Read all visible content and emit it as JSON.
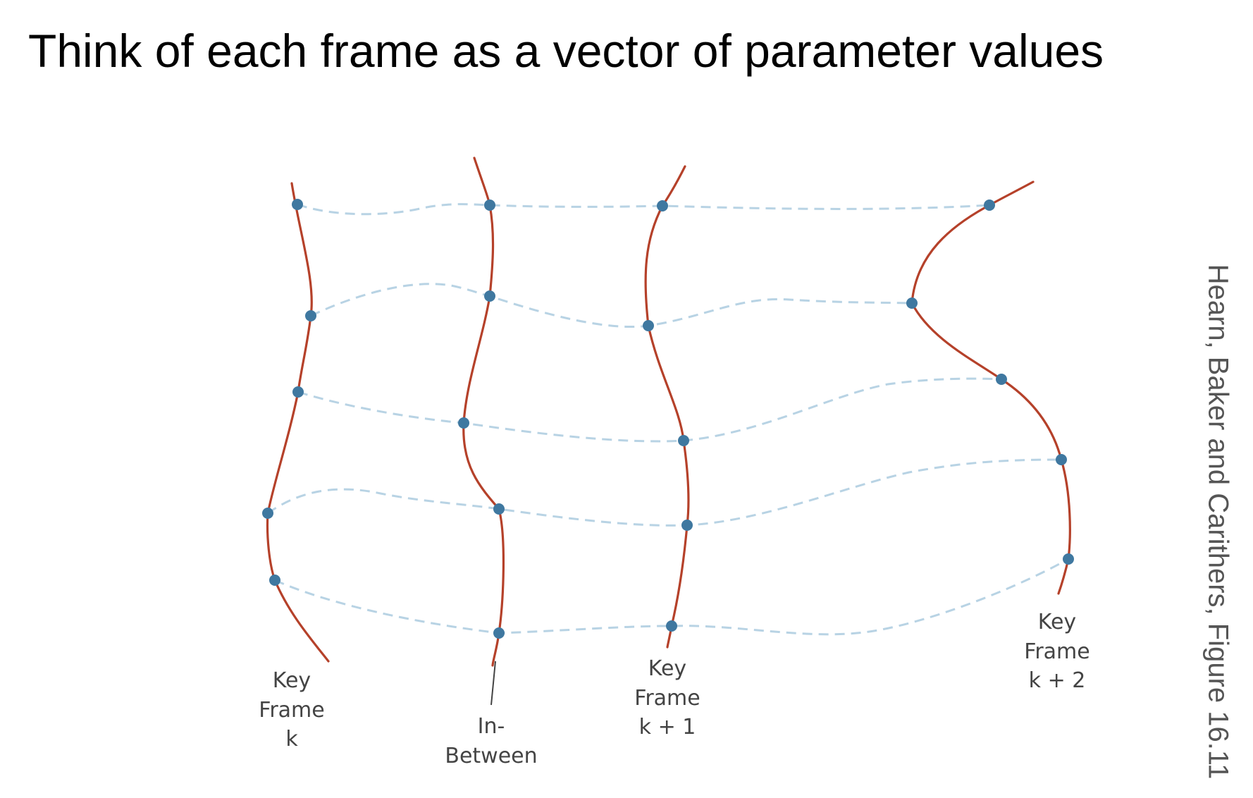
{
  "title": "Think of each frame as a vector of parameter values",
  "citation": "Hearn, Baker and Carithers, Figure 16.11",
  "colors": {
    "curve": "#b5412a",
    "dot": "#3f78a0",
    "dashed_path": "#b8d3e4",
    "label": "#444444"
  },
  "labels": {
    "key_k": {
      "line1": "Key",
      "line2": "Frame",
      "line3": "k"
    },
    "inbetween": {
      "line1": "In-",
      "line2": "Between"
    },
    "key_k1": {
      "line1": "Key",
      "line2": "Frame",
      "line3": "k + 1"
    },
    "key_k2": {
      "line1": "Key",
      "line2": "Frame",
      "line3": "k + 2"
    }
  }
}
